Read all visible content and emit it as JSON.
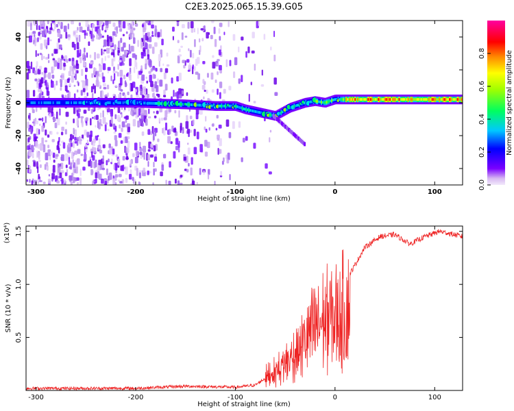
{
  "title": "C2E3.2025.065.15.39.G05",
  "chart_data": [
    {
      "type": "heatmap",
      "xlabel": "Height of straight line (km)",
      "ylabel": "Frequency (Hz)",
      "xlim": [
        -310,
        128
      ],
      "ylim": [
        -50,
        50
      ],
      "x_ticks": [
        -300,
        -200,
        -100,
        0,
        100
      ],
      "y_ticks": [
        -40,
        -20,
        0,
        20,
        40
      ],
      "colorbar": {
        "label": "Normalized spectral amplitude",
        "range": [
          0,
          1
        ],
        "ticks": [
          "0.0",
          "0.2",
          "0.4",
          "0.6",
          "0.8"
        ],
        "colormap": [
          "#e8d8f8",
          "#7a00ff",
          "#0000ff",
          "#00ffff",
          "#00ff00",
          "#ffff00",
          "#ff8800",
          "#ff0000",
          "#ff00ff"
        ]
      },
      "ridge": [
        {
          "x": -300,
          "f": 0
        },
        {
          "x": -200,
          "f": 0
        },
        {
          "x": -150,
          "f": -1
        },
        {
          "x": -120,
          "f": -2
        },
        {
          "x": -100,
          "f": -2
        },
        {
          "x": -90,
          "f": -4
        },
        {
          "x": -75,
          "f": -6
        },
        {
          "x": -60,
          "f": -8
        },
        {
          "x": -45,
          "f": -3
        },
        {
          "x": -30,
          "f": 0
        },
        {
          "x": -20,
          "f": 1
        },
        {
          "x": -10,
          "f": 0
        },
        {
          "x": 0,
          "f": 2
        },
        {
          "x": 50,
          "f": 2
        },
        {
          "x": 128,
          "f": 2
        }
      ]
    },
    {
      "type": "line",
      "xlabel": "Height of straight line (km)",
      "ylabel": "SNR (10 * v/v)",
      "scale_label": "(x10⁴)",
      "xlim": [
        -310,
        128
      ],
      "ylim": [
        0,
        1.55
      ],
      "x_ticks": [
        -300,
        -200,
        -100,
        0,
        100
      ],
      "y_ticks": [
        "0.5",
        "1.0",
        "1.5"
      ],
      "color": "#ee2222",
      "envelope": [
        {
          "x": -310,
          "y": 0.02
        },
        {
          "x": -200,
          "y": 0.02
        },
        {
          "x": -150,
          "y": 0.04
        },
        {
          "x": -100,
          "y": 0.03
        },
        {
          "x": -80,
          "y": 0.05
        },
        {
          "x": -60,
          "y": 0.18
        },
        {
          "x": -45,
          "y": 0.35
        },
        {
          "x": -35,
          "y": 0.5
        },
        {
          "x": -25,
          "y": 0.7
        },
        {
          "x": -15,
          "y": 0.85
        },
        {
          "x": -5,
          "y": 0.9
        },
        {
          "x": 5,
          "y": 0.95
        },
        {
          "x": 15,
          "y": 1.1
        },
        {
          "x": 30,
          "y": 1.35
        },
        {
          "x": 45,
          "y": 1.45
        },
        {
          "x": 60,
          "y": 1.47
        },
        {
          "x": 75,
          "y": 1.38
        },
        {
          "x": 90,
          "y": 1.45
        },
        {
          "x": 105,
          "y": 1.5
        },
        {
          "x": 115,
          "y": 1.48
        },
        {
          "x": 128,
          "y": 1.45
        }
      ]
    }
  ]
}
